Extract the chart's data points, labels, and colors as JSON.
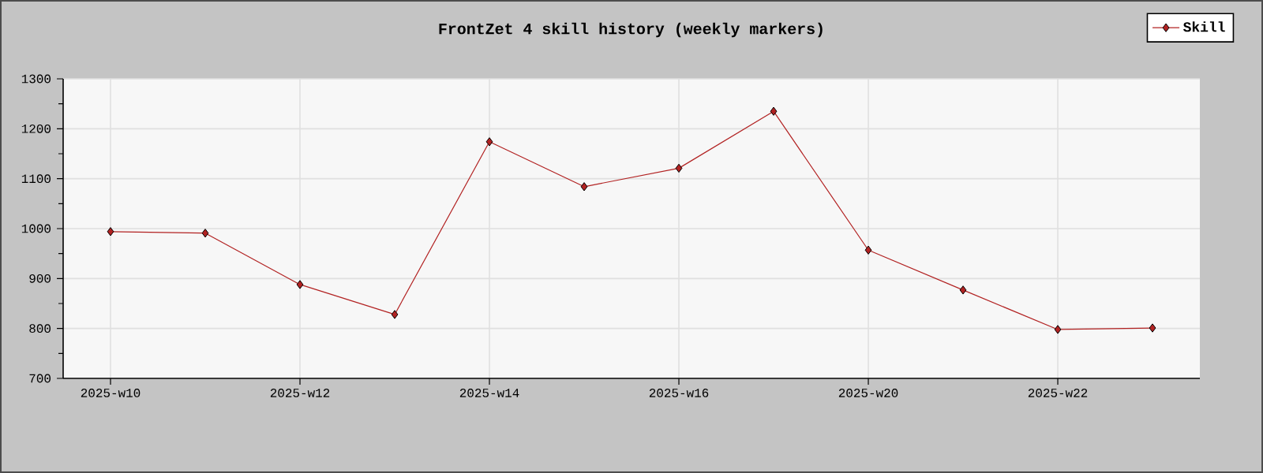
{
  "chart_data": {
    "type": "line",
    "title": "FrontZet 4 skill history (weekly markers)",
    "categories": [
      "2025-w10",
      null,
      "2025-w12",
      null,
      "2025-w14",
      null,
      "2025-w16",
      null,
      "2025-w20",
      null,
      "2025-w22",
      null
    ],
    "series": [
      {
        "name": "Skill",
        "color": "#b22222",
        "values": [
          994,
          991,
          888,
          828,
          1174,
          1084,
          1121,
          1235,
          957,
          877,
          798,
          801
        ]
      }
    ],
    "ylim": [
      700,
      1300
    ],
    "yticks": [
      700,
      800,
      900,
      1000,
      1100,
      1200,
      1300
    ],
    "grid": true,
    "legend": "top right",
    "marker": "diamond",
    "line_style": "solid"
  }
}
